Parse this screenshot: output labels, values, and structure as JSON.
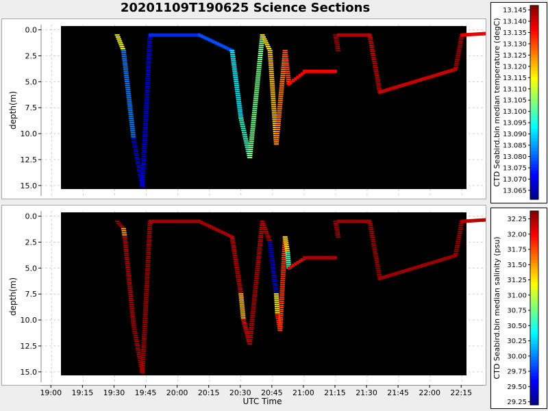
{
  "title": "20201109T190625 Science Sections",
  "chart_data": [
    {
      "type": "heatmap",
      "title": "20201109T190625 Science Sections",
      "xlabel": "UTC Time",
      "ylabel": "depth(m)",
      "x_ticks": [
        "19:00",
        "19:15",
        "19:30",
        "19:45",
        "20:00",
        "20:15",
        "20:30",
        "20:45",
        "21:00",
        "21:15",
        "21:30",
        "21:45",
        "22:00",
        "22:15"
      ],
      "y_ticks": [
        "0.0",
        "2.5",
        "5.0",
        "7.5",
        "10.0",
        "12.5",
        "15.0"
      ],
      "ylim": [
        15.5,
        -0.5
      ],
      "colorbar": {
        "label": "CTD Seabird.bin median temperature (degC)",
        "ticks": [
          "13.065",
          "13.070",
          "13.075",
          "13.080",
          "13.085",
          "13.090",
          "13.095",
          "13.100",
          "13.105",
          "13.110",
          "13.115",
          "13.120",
          "13.125",
          "13.130",
          "13.135",
          "13.140",
          "13.145"
        ],
        "range": [
          13.061,
          13.147
        ],
        "colormap": "jet"
      },
      "segments": [
        {
          "t": [
            19.52,
            19.57
          ],
          "d": [
            0.5,
            2.0
          ],
          "v": 13.114
        },
        {
          "t": [
            19.57,
            19.65
          ],
          "d": [
            2.0,
            10.5
          ],
          "v": 13.082
        },
        {
          "t": [
            19.65,
            19.72
          ],
          "d": [
            10.5,
            15.1
          ],
          "v": 13.066
        },
        {
          "t": [
            19.72,
            19.78
          ],
          "d": [
            15.0,
            0.5
          ],
          "v": 13.068
        },
        {
          "t": [
            19.78,
            20.17
          ],
          "d": [
            0.5,
            0.5
          ],
          "v": 13.075
        },
        {
          "t": [
            20.17,
            20.43
          ],
          "d": [
            0.5,
            2.0
          ],
          "v": 13.078
        },
        {
          "t": [
            20.43,
            20.5
          ],
          "d": [
            2.0,
            8.5
          ],
          "v": 13.092
        },
        {
          "t": [
            20.5,
            20.57
          ],
          "d": [
            8.5,
            12.3
          ],
          "v": 13.098
        },
        {
          "t": [
            20.57,
            20.67
          ],
          "d": [
            12.3,
            0.5
          ],
          "v": 13.103
        },
        {
          "t": [
            20.67,
            20.73
          ],
          "d": [
            0.5,
            2.0
          ],
          "v": 13.117
        },
        {
          "t": [
            20.73,
            20.78
          ],
          "d": [
            2.0,
            11.0
          ],
          "v": 13.12
        },
        {
          "t": [
            20.78,
            20.85
          ],
          "d": [
            11.0,
            2.0
          ],
          "v": 13.126
        },
        {
          "t": [
            20.85,
            20.88
          ],
          "d": [
            2.0,
            5.2
          ],
          "v": 13.13
        },
        {
          "t": [
            20.88,
            21.0
          ],
          "d": [
            5.2,
            4.1
          ],
          "v": 13.136
        },
        {
          "t": [
            21.0,
            21.25
          ],
          "d": [
            4.0,
            4.0
          ],
          "v": 13.137
        },
        {
          "t": [
            21.25,
            21.27
          ],
          "d": [
            0.5,
            2.0
          ],
          "v": 13.145
        },
        {
          "t": [
            21.27,
            21.52
          ],
          "d": [
            0.5,
            0.5
          ],
          "v": 13.143
        },
        {
          "t": [
            21.52,
            21.6
          ],
          "d": [
            0.5,
            6.0
          ],
          "v": 13.142
        },
        {
          "t": [
            21.6,
            22.2
          ],
          "d": [
            6.0,
            3.8
          ],
          "v": 13.141
        },
        {
          "t": [
            22.2,
            22.25
          ],
          "d": [
            3.8,
            0.5
          ],
          "v": 13.144
        },
        {
          "t": [
            22.25,
            22.52
          ],
          "d": [
            0.5,
            0.3
          ],
          "v": 13.138
        }
      ]
    },
    {
      "type": "heatmap",
      "xlabel": "UTC Time",
      "ylabel": "depth(m)",
      "x_ticks": [
        "19:00",
        "19:15",
        "19:30",
        "19:45",
        "20:00",
        "20:15",
        "20:30",
        "20:45",
        "21:00",
        "21:15",
        "21:30",
        "21:45",
        "22:00",
        "22:15"
      ],
      "y_ticks": [
        "0.0",
        "2.5",
        "5.0",
        "7.5",
        "10.0",
        "12.5",
        "15.0"
      ],
      "ylim": [
        15.5,
        -0.5
      ],
      "colorbar": {
        "label": "CTD Seabird.bin median salinity (psu)",
        "ticks": [
          "29.25",
          "29.50",
          "29.75",
          "30.00",
          "30.25",
          "30.50",
          "30.75",
          "31.00",
          "31.25",
          "31.50",
          "31.75",
          "32.00",
          "32.25"
        ],
        "range": [
          29.2,
          32.38
        ],
        "colormap": "jet"
      },
      "segments": [
        {
          "t": [
            19.52,
            19.57
          ],
          "d": [
            0.5,
            1.2
          ],
          "v": 32.3
        },
        {
          "t": [
            19.57,
            19.58
          ],
          "d": [
            1.2,
            2.0
          ],
          "v": 31.5
        },
        {
          "t": [
            19.58,
            19.65
          ],
          "d": [
            2.0,
            10.5
          ],
          "v": 32.25
        },
        {
          "t": [
            19.65,
            19.72
          ],
          "d": [
            10.5,
            15.1
          ],
          "v": 32.3
        },
        {
          "t": [
            19.72,
            19.78
          ],
          "d": [
            15.0,
            0.5
          ],
          "v": 32.28
        },
        {
          "t": [
            19.78,
            20.17
          ],
          "d": [
            0.5,
            0.5
          ],
          "v": 32.28
        },
        {
          "t": [
            20.17,
            20.43
          ],
          "d": [
            0.5,
            2.0
          ],
          "v": 32.28
        },
        {
          "t": [
            20.43,
            20.5
          ],
          "d": [
            2.0,
            7.5
          ],
          "v": 32.2
        },
        {
          "t": [
            20.5,
            20.52
          ],
          "d": [
            7.5,
            10.0
          ],
          "v": 31.4
        },
        {
          "t": [
            20.52,
            20.57
          ],
          "d": [
            10.0,
            12.3
          ],
          "v": 32.1
        },
        {
          "t": [
            20.57,
            20.67
          ],
          "d": [
            12.3,
            0.5
          ],
          "v": 32.25
        },
        {
          "t": [
            20.67,
            20.73
          ],
          "d": [
            0.5,
            2.5
          ],
          "v": 32.2
        },
        {
          "t": [
            20.73,
            20.78
          ],
          "d": [
            2.5,
            7.5
          ],
          "v": 29.4
        },
        {
          "t": [
            20.78,
            20.79
          ],
          "d": [
            7.5,
            9.5
          ],
          "v": 31.2
        },
        {
          "t": [
            20.79,
            20.81
          ],
          "d": [
            9.5,
            11.0
          ],
          "v": 31.9
        },
        {
          "t": [
            20.81,
            20.85
          ],
          "d": [
            11.0,
            2.0
          ],
          "v": 31.8
        },
        {
          "t": [
            20.85,
            20.87
          ],
          "d": [
            2.0,
            3.5
          ],
          "v": 31.3
        },
        {
          "t": [
            20.87,
            20.88
          ],
          "d": [
            3.5,
            5.0
          ],
          "v": 30.6
        },
        {
          "t": [
            20.88,
            21.0
          ],
          "d": [
            5.0,
            4.1
          ],
          "v": 32.1
        },
        {
          "t": [
            21.0,
            21.25
          ],
          "d": [
            4.0,
            4.0
          ],
          "v": 32.25
        },
        {
          "t": [
            21.25,
            21.27
          ],
          "d": [
            0.5,
            2.0
          ],
          "v": 32.3
        },
        {
          "t": [
            21.27,
            21.52
          ],
          "d": [
            0.5,
            0.5
          ],
          "v": 32.3
        },
        {
          "t": [
            21.52,
            21.6
          ],
          "d": [
            0.5,
            6.0
          ],
          "v": 32.3
        },
        {
          "t": [
            21.6,
            22.2
          ],
          "d": [
            6.0,
            3.8
          ],
          "v": 32.3
        },
        {
          "t": [
            22.2,
            22.25
          ],
          "d": [
            3.8,
            0.5
          ],
          "v": 32.3
        },
        {
          "t": [
            22.25,
            22.52
          ],
          "d": [
            0.5,
            0.3
          ],
          "v": 32.2
        }
      ]
    }
  ]
}
